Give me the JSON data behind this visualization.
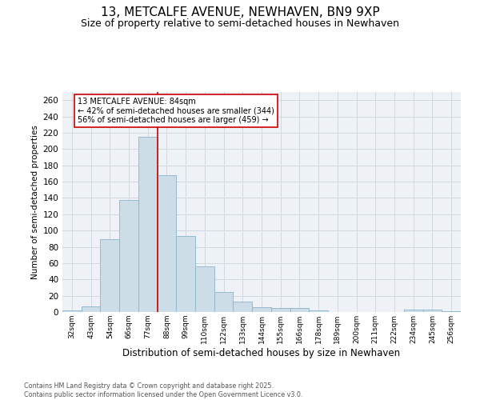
{
  "title": "13, METCALFE AVENUE, NEWHAVEN, BN9 9XP",
  "subtitle": "Size of property relative to semi-detached houses in Newhaven",
  "xlabel": "Distribution of semi-detached houses by size in Newhaven",
  "ylabel": "Number of semi-detached properties",
  "categories": [
    "32sqm",
    "43sqm",
    "54sqm",
    "66sqm",
    "77sqm",
    "88sqm",
    "99sqm",
    "110sqm",
    "122sqm",
    "133sqm",
    "144sqm",
    "155sqm",
    "166sqm",
    "178sqm",
    "189sqm",
    "200sqm",
    "211sqm",
    "222sqm",
    "234sqm",
    "245sqm",
    "256sqm"
  ],
  "values": [
    2,
    7,
    89,
    137,
    215,
    168,
    93,
    56,
    25,
    13,
    6,
    5,
    5,
    2,
    0,
    0,
    0,
    0,
    3,
    3,
    1
  ],
  "bar_color": "#ccdde8",
  "bar_edgecolor": "#8ab4cc",
  "vline_color": "#cc0000",
  "annotation_box_edgecolor": "#cc0000",
  "annotation_line1": "13 METCALFE AVENUE: 84sqm",
  "annotation_line2": "← 42% of semi-detached houses are smaller (344)",
  "annotation_line3": "56% of semi-detached houses are larger (459) →",
  "footer_line1": "Contains HM Land Registry data © Crown copyright and database right 2025.",
  "footer_line2": "Contains public sector information licensed under the Open Government Licence v3.0.",
  "ylim": [
    0,
    270
  ],
  "yticks": [
    0,
    20,
    40,
    60,
    80,
    100,
    120,
    140,
    160,
    180,
    200,
    220,
    240,
    260
  ],
  "grid_color": "#d0d8e0",
  "bg_color": "#eef2f7",
  "title_fontsize": 11,
  "subtitle_fontsize": 9
}
